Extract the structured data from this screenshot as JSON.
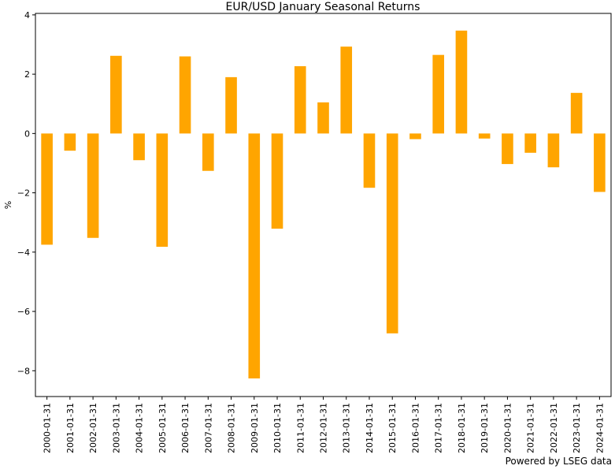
{
  "chart_data": {
    "type": "bar",
    "title": "EUR/USD January Seasonal Returns",
    "xlabel": "",
    "ylabel": "%",
    "ylim": [
      -8.87,
      4.05
    ],
    "yticks": [
      4,
      2,
      0,
      -2,
      -4,
      -6,
      -8
    ],
    "ytick_labels": [
      "4",
      "2",
      "0",
      "−2",
      "−4",
      "−6",
      "−8"
    ],
    "grid": false,
    "bar_color": "#FFA500",
    "categories": [
      "2000-01-31",
      "2001-01-31",
      "2002-01-31",
      "2003-01-31",
      "2004-01-31",
      "2005-01-31",
      "2006-01-31",
      "2007-01-31",
      "2008-01-31",
      "2009-01-31",
      "2010-01-31",
      "2011-01-31",
      "2012-01-31",
      "2013-01-31",
      "2014-01-31",
      "2015-01-31",
      "2016-01-31",
      "2017-01-31",
      "2018-01-31",
      "2019-01-31",
      "2020-01-31",
      "2021-01-31",
      "2022-01-31",
      "2023-01-31",
      "2024-01-31"
    ],
    "values": [
      -3.75,
      -0.58,
      -3.52,
      2.62,
      -0.9,
      -3.82,
      2.6,
      -1.26,
      1.9,
      -8.26,
      -3.21,
      2.27,
      1.05,
      2.93,
      -1.83,
      -6.74,
      -0.19,
      2.65,
      3.47,
      -0.17,
      -1.03,
      -0.65,
      -1.14,
      1.37,
      -1.97
    ],
    "footer": "Powered by LSEG data"
  }
}
